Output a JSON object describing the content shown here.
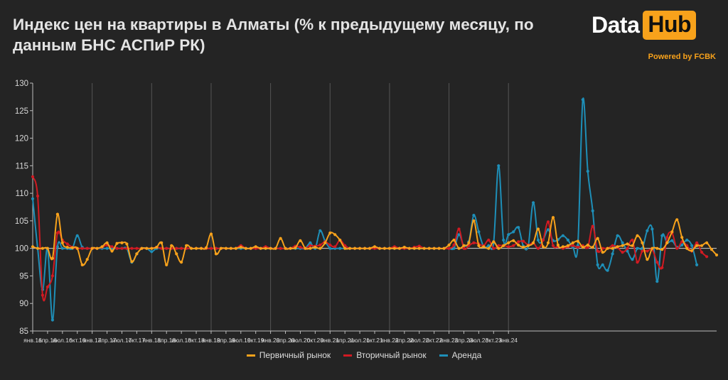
{
  "header": {
    "title": "Индекс цен на квартиры в Алматы (% к предыдущему месяцу, по данным БНС АСПиР РК)",
    "logo_data": "Data",
    "logo_hub": "Hub",
    "powered_by": "Powered by FCBK"
  },
  "colors": {
    "background": "#242424",
    "primary": "#f8a21b",
    "secondary": "#d11a22",
    "rent": "#1e8fb8",
    "grid": "#555555",
    "reference_line": "#cfcfcf"
  },
  "chart_data": {
    "type": "line",
    "title": "Индекс цен на квартиры в Алматы (% к предыдущему месяцу, по данным БНС АСПиР РК)",
    "xlabel": "",
    "ylabel": "",
    "ylim": [
      85,
      130
    ],
    "yticks": [
      85,
      90,
      95,
      100,
      105,
      110,
      115,
      120,
      125,
      130
    ],
    "x_tick_labels": [
      "янв.16",
      "апр.16",
      "июл.16",
      "окт.16",
      "янв.17",
      "апр.17",
      "июл.17",
      "окт.17",
      "янв.18",
      "апр.18",
      "июл.18",
      "окт.18",
      "янв.19",
      "апр.19",
      "июл.19",
      "окт.19",
      "янв.20",
      "апр.20",
      "июл.20",
      "окт.20",
      "янв.21",
      "апр.21",
      "июл.21",
      "окт.21",
      "янв.22",
      "апр.22",
      "июл.22",
      "окт.22",
      "янв.23",
      "апр.23",
      "июл.23",
      "окт.23",
      "янв.24"
    ],
    "grid": "vertical lines at each January",
    "legend_position": "bottom",
    "reference_line": 100,
    "series": [
      {
        "name": "Первичный рынок",
        "color": "#f8a21b",
        "values": [
          100.3,
          100,
          100,
          100,
          98.2,
          106.2,
          101,
          100.2,
          100.1,
          100,
          97,
          98,
          100,
          100,
          100.3,
          101,
          99.5,
          100.9,
          101,
          100.8,
          97.6,
          99,
          100,
          100,
          100,
          100.2,
          101,
          97,
          100.5,
          99,
          97.5,
          100.5,
          100,
          100,
          100,
          100.1,
          102.6,
          99,
          100,
          100,
          100,
          100,
          100.2,
          100,
          100,
          100.3,
          100,
          100,
          100,
          100,
          101.8,
          100,
          100,
          100.1,
          101.4,
          100,
          100,
          100.2,
          100,
          101,
          102.8,
          102.5,
          101.5,
          100,
          100,
          100,
          100,
          100,
          100,
          100.3,
          100,
          100,
          100,
          100,
          100,
          100.2,
          100,
          100,
          100,
          100,
          100,
          100,
          100,
          100,
          100.6,
          101.5,
          100,
          100.5,
          101,
          105,
          100.5,
          100.3,
          100,
          101.2,
          100,
          100.5,
          101,
          101.4,
          100.6,
          100.2,
          100.5,
          101,
          103.5,
          100.3,
          101,
          105.6,
          100.6,
          100.3,
          100.5,
          101,
          101.3,
          100.2,
          100.6,
          100.2,
          101.8,
          99.3,
          100,
          100,
          100.3,
          100.5,
          100.8,
          100.5,
          102.3,
          101,
          98,
          100,
          100,
          99.8,
          101,
          103,
          105.2,
          102,
          100,
          99.6,
          100.5,
          100.5,
          101,
          99.8,
          98.8
        ]
      },
      {
        "name": "Вторичный рынок",
        "color": "#d11a22",
        "values": [
          113,
          109.5,
          91.5,
          93,
          95,
          102.8,
          101.5,
          100.8,
          100.2,
          100,
          100,
          100,
          100,
          100,
          100.2,
          100.6,
          100.3,
          100,
          100,
          100,
          100,
          100,
          100,
          100,
          100,
          100.2,
          100,
          100,
          100,
          100,
          100,
          100,
          100,
          100,
          100,
          100,
          100,
          100,
          100,
          100,
          100,
          100,
          100.5,
          100,
          100,
          100,
          100,
          100.3,
          100,
          100,
          100,
          100,
          100,
          100.4,
          100.2,
          100,
          100.5,
          100.4,
          100.6,
          101.2,
          100.6,
          100.3,
          101.5,
          100.5,
          100,
          100,
          100,
          100,
          100,
          100,
          100,
          100,
          100,
          100.3,
          100,
          100,
          100,
          100.2,
          100.4,
          100,
          100,
          100,
          100,
          100,
          100,
          100.6,
          103.5,
          100,
          100.5,
          101,
          100.8,
          100.5,
          101.5,
          100,
          100.5,
          100.5,
          100.3,
          100.5,
          101.2,
          101.3,
          100.6,
          101,
          100,
          101.5,
          104.8,
          100.5,
          100.3,
          100,
          100.3,
          100.5,
          100.2,
          100.5,
          100.2,
          104,
          99.5,
          100,
          100,
          100.5,
          100.2,
          99.3,
          100,
          101.5,
          97.5,
          99.5,
          99.5,
          99.8,
          97.5,
          96.5,
          102,
          102.8,
          100,
          101.2,
          100.5,
          99.5,
          101,
          99.3,
          98.5
        ]
      },
      {
        "name": "Аренда",
        "color": "#1e8fb8",
        "values": [
          109,
          100,
          92.5,
          100,
          87,
          100.3,
          100,
          100,
          100,
          102.3,
          100.2,
          100,
          100,
          100,
          100,
          100,
          100,
          100,
          100,
          100,
          97.5,
          99,
          100,
          100,
          99.4,
          100,
          100,
          100,
          100,
          100,
          100,
          100,
          100,
          100,
          100,
          100,
          100,
          100,
          100,
          100,
          100,
          100,
          100,
          100,
          100,
          100,
          100,
          100,
          100,
          100,
          100,
          100,
          100,
          100,
          100,
          100,
          101,
          100,
          103.2,
          101.3,
          100,
          100,
          100,
          100,
          100,
          100,
          100,
          100,
          100,
          100,
          100,
          100,
          100,
          100,
          100,
          100,
          100,
          100,
          100,
          100,
          100,
          100,
          100,
          100,
          100,
          100,
          102.5,
          100.5,
          101.2,
          106,
          103,
          100.3,
          100.5,
          101,
          115,
          101.5,
          102.5,
          103,
          103.8,
          100.4,
          100.5,
          108.3,
          101.5,
          101.6,
          103.4,
          101.4,
          101.6,
          102.3,
          101.5,
          100.2,
          100.5,
          127,
          114,
          106.8,
          97,
          97,
          96,
          99,
          102.3,
          101,
          99.5,
          98,
          100,
          100,
          103.2,
          103.5,
          94,
          102.3,
          101,
          101.4,
          100.2,
          100.6,
          101.5,
          100.5,
          97
        ]
      }
    ]
  }
}
